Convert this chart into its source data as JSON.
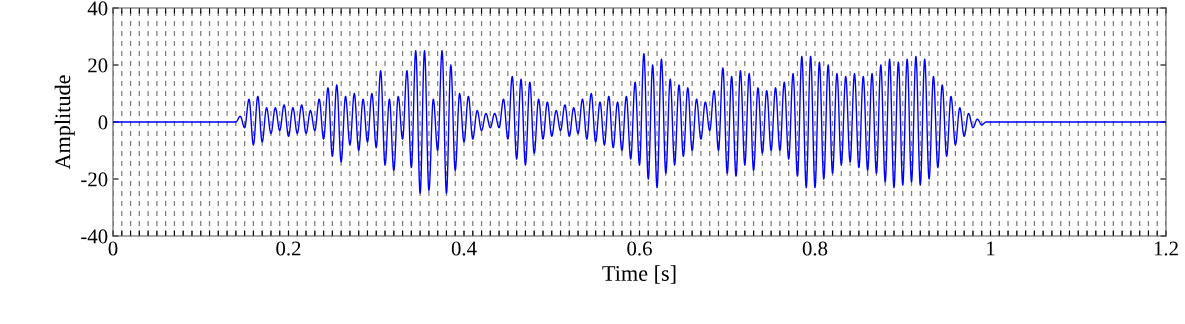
{
  "chart_data": {
    "type": "line",
    "xlabel": "Time [s]",
    "ylabel": "Amplitude",
    "xlim": [
      0,
      1.2
    ],
    "ylim": [
      -40,
      40
    ],
    "yticks": [
      -40,
      -20,
      0,
      20,
      40
    ],
    "xticks": [
      0,
      {
        "value": 0.01,
        "label": null
      },
      {
        "value": 0.02,
        "label": null
      },
      {
        "value": 0.03,
        "label": null
      },
      {
        "value": 0.04,
        "label": null
      },
      {
        "value": 0.05,
        "label": null
      },
      {
        "value": 0.06,
        "label": null
      },
      {
        "value": 0.07,
        "label": null
      },
      {
        "value": 0.08,
        "label": null
      },
      {
        "value": 0.09,
        "label": null
      },
      {
        "value": 0.1,
        "label": null
      },
      {
        "value": 0.11,
        "label": null
      },
      {
        "value": 0.12,
        "label": null
      },
      {
        "value": 0.13,
        "label": null
      },
      {
        "value": 0.14,
        "label": null
      },
      {
        "value": 0.15,
        "label": null
      },
      {
        "value": 0.16,
        "label": null
      },
      {
        "value": 0.17,
        "label": null
      },
      {
        "value": 0.18,
        "label": null
      },
      {
        "value": 0.19,
        "label": null
      },
      0.2,
      {
        "value": 0.21,
        "label": null
      },
      {
        "value": 0.22,
        "label": null
      },
      {
        "value": 0.23,
        "label": null
      },
      {
        "value": 0.24,
        "label": null
      },
      {
        "value": 0.25,
        "label": null
      },
      {
        "value": 0.26,
        "label": null
      },
      {
        "value": 0.27,
        "label": null
      },
      {
        "value": 0.28,
        "label": null
      },
      {
        "value": 0.29,
        "label": null
      },
      {
        "value": 0.3,
        "label": null
      },
      {
        "value": 0.31,
        "label": null
      },
      {
        "value": 0.32,
        "label": null
      },
      {
        "value": 0.33,
        "label": null
      },
      {
        "value": 0.34,
        "label": null
      },
      {
        "value": 0.35,
        "label": null
      },
      {
        "value": 0.36,
        "label": null
      },
      {
        "value": 0.37,
        "label": null
      },
      {
        "value": 0.38,
        "label": null
      },
      {
        "value": 0.39,
        "label": null
      },
      0.4,
      {
        "value": 0.41,
        "label": null
      },
      {
        "value": 0.42,
        "label": null
      },
      {
        "value": 0.43,
        "label": null
      },
      {
        "value": 0.44,
        "label": null
      },
      {
        "value": 0.45,
        "label": null
      },
      {
        "value": 0.46,
        "label": null
      },
      {
        "value": 0.47,
        "label": null
      },
      {
        "value": 0.48,
        "label": null
      },
      {
        "value": 0.49,
        "label": null
      },
      {
        "value": 0.5,
        "label": null
      },
      {
        "value": 0.51,
        "label": null
      },
      {
        "value": 0.52,
        "label": null
      },
      {
        "value": 0.53,
        "label": null
      },
      {
        "value": 0.54,
        "label": null
      },
      {
        "value": 0.55,
        "label": null
      },
      {
        "value": 0.56,
        "label": null
      },
      {
        "value": 0.57,
        "label": null
      },
      {
        "value": 0.58,
        "label": null
      },
      {
        "value": 0.59,
        "label": null
      },
      0.6,
      {
        "value": 0.61,
        "label": null
      },
      {
        "value": 0.62,
        "label": null
      },
      {
        "value": 0.63,
        "label": null
      },
      {
        "value": 0.64,
        "label": null
      },
      {
        "value": 0.65,
        "label": null
      },
      {
        "value": 0.66,
        "label": null
      },
      {
        "value": 0.67,
        "label": null
      },
      {
        "value": 0.68,
        "label": null
      },
      {
        "value": 0.69,
        "label": null
      },
      {
        "value": 0.7,
        "label": null
      },
      {
        "value": 0.71,
        "label": null
      },
      {
        "value": 0.72,
        "label": null
      },
      {
        "value": 0.73,
        "label": null
      },
      {
        "value": 0.74,
        "label": null
      },
      {
        "value": 0.75,
        "label": null
      },
      {
        "value": 0.76,
        "label": null
      },
      {
        "value": 0.77,
        "label": null
      },
      {
        "value": 0.78,
        "label": null
      },
      {
        "value": 0.79,
        "label": null
      },
      0.8,
      {
        "value": 0.81,
        "label": null
      },
      {
        "value": 0.82,
        "label": null
      },
      {
        "value": 0.83,
        "label": null
      },
      {
        "value": 0.84,
        "label": null
      },
      {
        "value": 0.85,
        "label": null
      },
      {
        "value": 0.86,
        "label": null
      },
      {
        "value": 0.87,
        "label": null
      },
      {
        "value": 0.88,
        "label": null
      },
      {
        "value": 0.89,
        "label": null
      },
      {
        "value": 0.9,
        "label": null
      },
      {
        "value": 0.91,
        "label": null
      },
      {
        "value": 0.92,
        "label": null
      },
      {
        "value": 0.93,
        "label": null
      },
      {
        "value": 0.94,
        "label": null
      },
      {
        "value": 0.95,
        "label": null
      },
      {
        "value": 0.96,
        "label": null
      },
      {
        "value": 0.97,
        "label": null
      },
      {
        "value": 0.98,
        "label": null
      },
      {
        "value": 0.99,
        "label": null
      },
      1,
      {
        "value": 1.01,
        "label": null
      },
      {
        "value": 1.02,
        "label": null
      },
      {
        "value": 1.03,
        "label": null
      },
      {
        "value": 1.04,
        "label": null
      },
      {
        "value": 1.05,
        "label": null
      },
      {
        "value": 1.06,
        "label": null
      },
      {
        "value": 1.07,
        "label": null
      },
      {
        "value": 1.08,
        "label": null
      },
      {
        "value": 1.09,
        "label": null
      },
      {
        "value": 1.1,
        "label": null
      },
      {
        "value": 1.11,
        "label": null
      },
      {
        "value": 1.12,
        "label": null
      },
      {
        "value": 1.13,
        "label": null
      },
      {
        "value": 1.14,
        "label": null
      },
      {
        "value": 1.15,
        "label": null
      },
      {
        "value": 1.16,
        "label": null
      },
      {
        "value": 1.17,
        "label": null
      },
      {
        "value": 1.18,
        "label": null
      },
      {
        "value": 1.19,
        "label": null
      },
      1.2
    ],
    "grid": "x",
    "marker": "none",
    "line_style": "solid",
    "series": [
      {
        "color": "#0000ff",
        "x": [
          0,
          0.14,
          0.145,
          0.15,
          0.155,
          0.16,
          0.165,
          0.17,
          0.175,
          0.18,
          0.185,
          0.19,
          0.195,
          0.2,
          0.205,
          0.21,
          0.215,
          0.22,
          0.225,
          0.23,
          0.235,
          0.24,
          0.245,
          0.25,
          0.255,
          0.26,
          0.265,
          0.27,
          0.275,
          0.28,
          0.285,
          0.29,
          0.295,
          0.3,
          0.305,
          0.31,
          0.315,
          0.32,
          0.325,
          0.33,
          0.335,
          0.34,
          0.345,
          0.35,
          0.355,
          0.36,
          0.365,
          0.37,
          0.375,
          0.38,
          0.385,
          0.39,
          0.395,
          0.4,
          0.405,
          0.41,
          0.415,
          0.42,
          0.425,
          0.43,
          0.435,
          0.44,
          0.445,
          0.45,
          0.455,
          0.46,
          0.465,
          0.47,
          0.475,
          0.48,
          0.485,
          0.49,
          0.495,
          0.5,
          0.505,
          0.51,
          0.515,
          0.52,
          0.525,
          0.53,
          0.535,
          0.54,
          0.545,
          0.55,
          0.555,
          0.56,
          0.565,
          0.57,
          0.575,
          0.58,
          0.585,
          0.59,
          0.595,
          0.6,
          0.605,
          0.61,
          0.615,
          0.62,
          0.625,
          0.63,
          0.635,
          0.64,
          0.645,
          0.65,
          0.655,
          0.66,
          0.665,
          0.67,
          0.675,
          0.68,
          0.685,
          0.69,
          0.695,
          0.7,
          0.705,
          0.71,
          0.715,
          0.72,
          0.725,
          0.73,
          0.735,
          0.74,
          0.745,
          0.75,
          0.755,
          0.76,
          0.765,
          0.77,
          0.775,
          0.78,
          0.785,
          0.79,
          0.795,
          0.8,
          0.805,
          0.81,
          0.815,
          0.82,
          0.825,
          0.83,
          0.835,
          0.84,
          0.845,
          0.85,
          0.855,
          0.86,
          0.865,
          0.87,
          0.875,
          0.88,
          0.885,
          0.89,
          0.895,
          0.9,
          0.905,
          0.91,
          0.915,
          0.92,
          0.925,
          0.93,
          0.935,
          0.94,
          0.945,
          0.95,
          0.955,
          0.96,
          0.965,
          0.97,
          0.975,
          0.98,
          0.985,
          0.99,
          0.995,
          1.2
        ],
        "values": [
          0,
          0,
          2,
          -2,
          8,
          -8,
          9,
          -7,
          5,
          -4,
          5,
          -3,
          6,
          -5,
          5,
          -4,
          6,
          -4,
          4,
          -3,
          8,
          -6,
          12,
          -12,
          13,
          -14,
          9,
          -8,
          10,
          -10,
          8,
          -7,
          10,
          -9,
          18,
          -15,
          8,
          -17,
          9,
          -6,
          18,
          -16,
          25,
          -25,
          25,
          -24,
          8,
          -10,
          25,
          -25,
          20,
          -17,
          10,
          -7,
          9,
          -6,
          4,
          -3,
          3,
          -2,
          3,
          -2,
          8,
          -6,
          16,
          -13,
          15,
          -15,
          14,
          -11,
          8,
          -6,
          7,
          -5,
          4,
          -3,
          6,
          -5,
          5,
          -4,
          8,
          -6,
          10,
          -7,
          7,
          -8,
          9,
          -9,
          7,
          -10,
          9,
          -13,
          14,
          -15,
          24,
          -20,
          20,
          -23,
          22,
          -18,
          15,
          -15,
          13,
          -12,
          12,
          -10,
          8,
          -6,
          7,
          -3,
          11,
          -10,
          19,
          -18,
          16,
          -19,
          18,
          -15,
          17,
          -17,
          12,
          -11,
          11,
          -10,
          12,
          -10,
          14,
          -13,
          17,
          -19,
          23,
          -23,
          23,
          -23,
          21,
          -20,
          20,
          -18,
          17,
          -15,
          16,
          -14,
          17,
          -16,
          16,
          -17,
          17,
          -18,
          20,
          -21,
          22,
          -23,
          21,
          -22,
          22,
          -21,
          23,
          -22,
          22,
          -20,
          16,
          -16,
          13,
          -12,
          9,
          -8,
          5,
          -5,
          3,
          -2,
          1,
          -1,
          0,
          0
        ]
      }
    ]
  }
}
